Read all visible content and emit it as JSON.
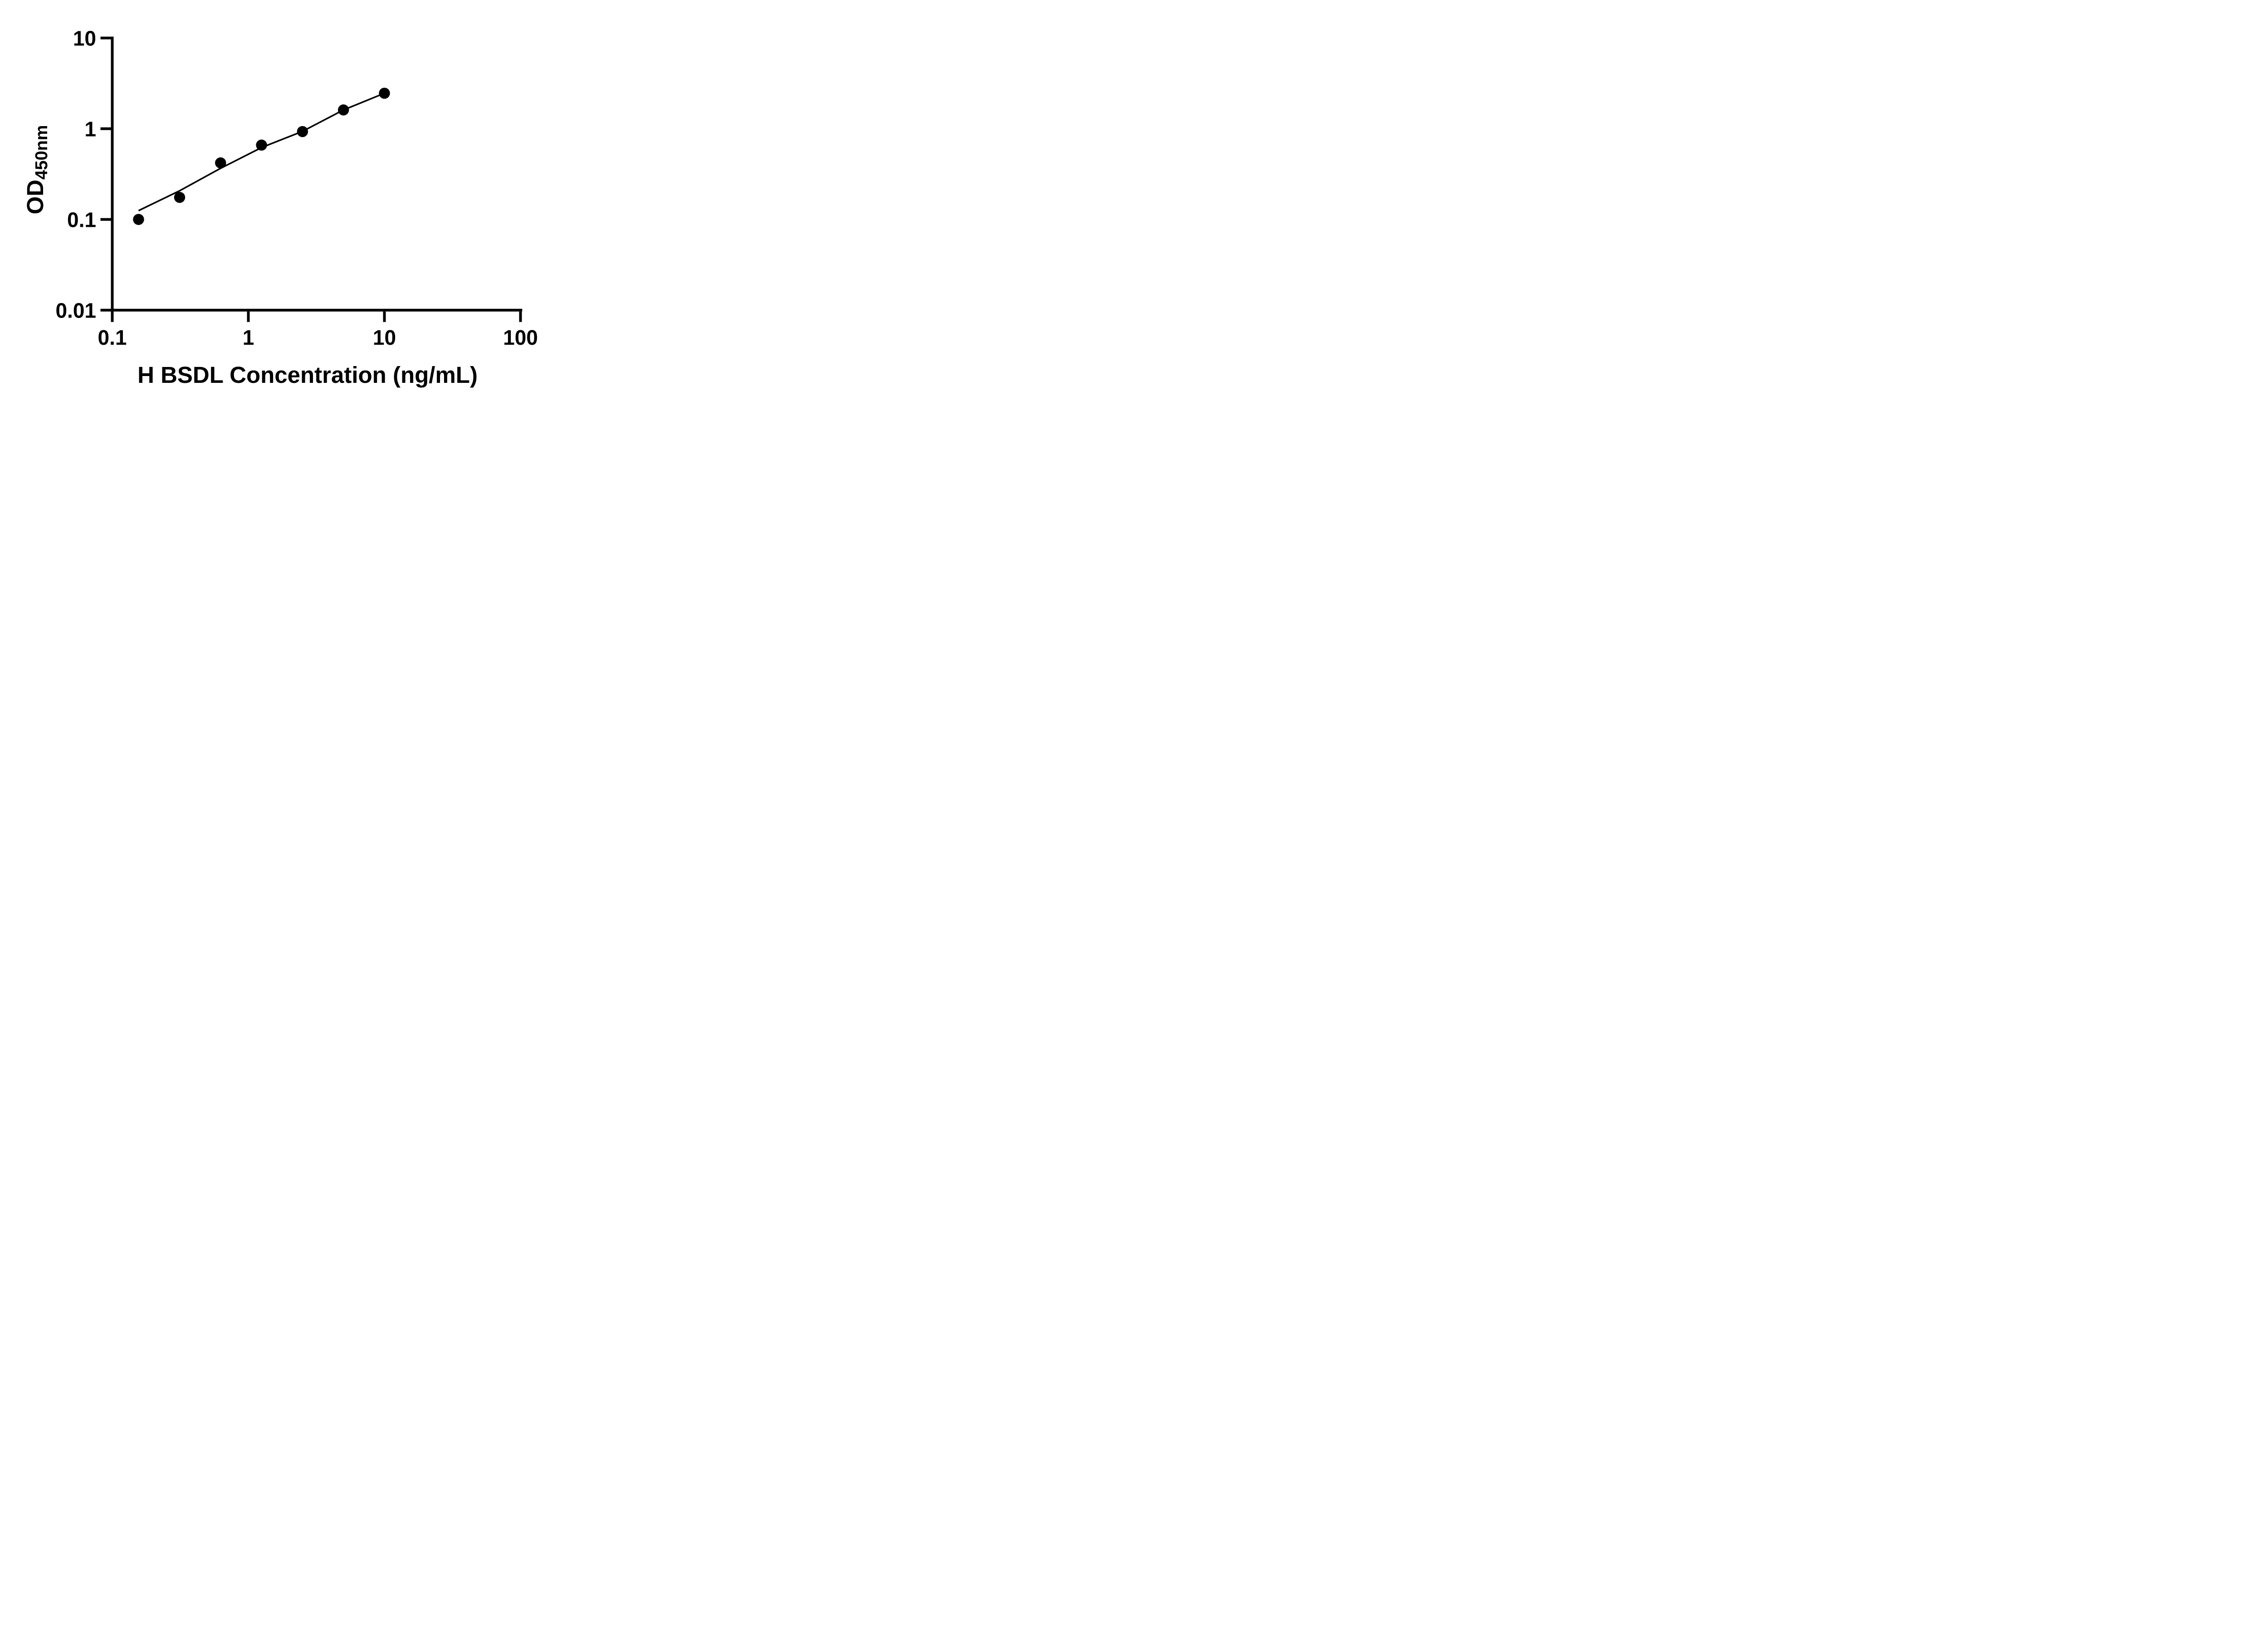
{
  "figure": {
    "background_color": "#ffffff",
    "ink_color": "#000000"
  },
  "axes": {
    "x_title": "H BSDL Concentration (ng/mL)",
    "y_title_main": "OD",
    "y_title_sub": "450nm"
  },
  "chart_data": {
    "type": "scatter",
    "title": "",
    "xlabel": "H BSDL Concentration (ng/mL)",
    "ylabel": "OD450nm",
    "x_scale": "log",
    "y_scale": "log",
    "xlim": [
      0.1,
      100
    ],
    "ylim": [
      0.01,
      10
    ],
    "grid": false,
    "legend": "none",
    "x_ticks": [
      {
        "value": 0.1,
        "label": "0.1"
      },
      {
        "value": 1,
        "label": "1"
      },
      {
        "value": 10,
        "label": "10"
      },
      {
        "value": 100,
        "label": "100"
      }
    ],
    "y_ticks": [
      {
        "value": 10,
        "label": "10"
      },
      {
        "value": 1,
        "label": "1"
      },
      {
        "value": 0.1,
        "label": "0.1"
      },
      {
        "value": 0.01,
        "label": "0.01"
      }
    ],
    "series": [
      {
        "name": "standard-curve-points",
        "marker": "filled-circle",
        "color": "#000000",
        "points": [
          {
            "x": 0.156,
            "y": 0.1
          },
          {
            "x": 0.3125,
            "y": 0.175
          },
          {
            "x": 0.625,
            "y": 0.42
          },
          {
            "x": 1.25,
            "y": 0.66
          },
          {
            "x": 2.5,
            "y": 0.93
          },
          {
            "x": 5,
            "y": 1.61
          },
          {
            "x": 10,
            "y": 2.46
          }
        ]
      }
    ],
    "fit_line": {
      "name": "4pl-fit-curve",
      "color": "#000000",
      "points": [
        {
          "x": 0.156,
          "y": 0.125
        },
        {
          "x": 0.3125,
          "y": 0.207
        },
        {
          "x": 0.625,
          "y": 0.366
        },
        {
          "x": 1.25,
          "y": 0.62
        },
        {
          "x": 2.5,
          "y": 0.935
        },
        {
          "x": 5,
          "y": 1.61
        },
        {
          "x": 10,
          "y": 2.46
        }
      ]
    }
  }
}
